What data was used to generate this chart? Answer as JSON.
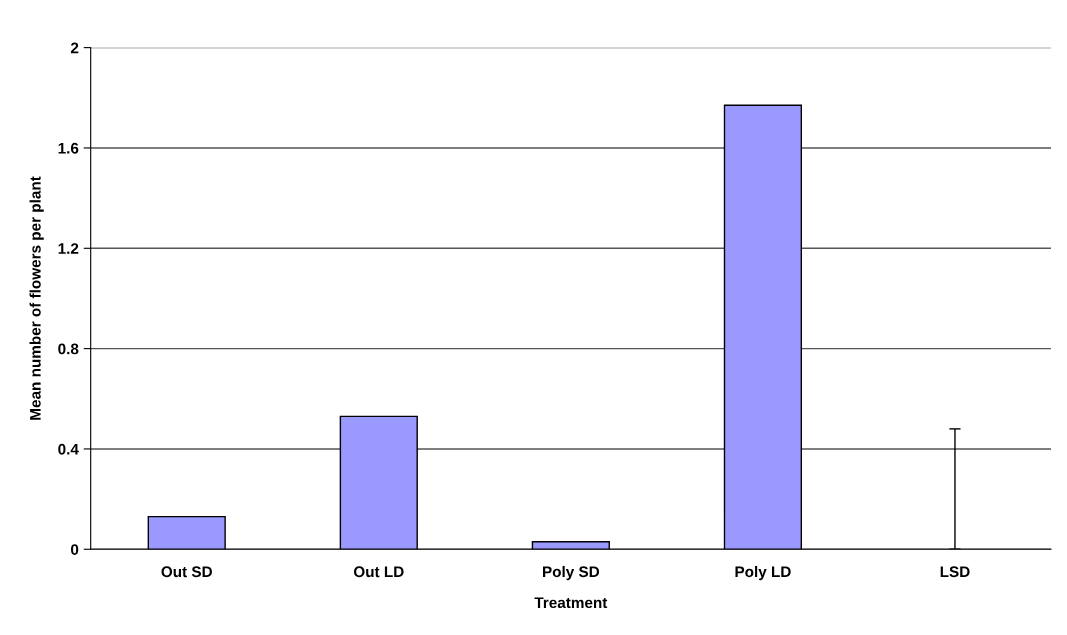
{
  "chart_data": {
    "type": "bar",
    "xlabel": "Treatment",
    "ylabel": "Mean number of flowers per plant",
    "categories": [
      "Out SD",
      "Out LD",
      "Poly SD",
      "Poly LD",
      "LSD"
    ],
    "values": [
      0.13,
      0.53,
      0.03,
      1.77,
      0
    ],
    "errors": [
      null,
      null,
      null,
      null,
      [
        0,
        0.48
      ]
    ],
    "color": "#9999ff",
    "ylim": [
      0,
      2
    ],
    "yticks": [
      0,
      0.4,
      0.8,
      1.2,
      1.6,
      2
    ],
    "grid": "y"
  }
}
